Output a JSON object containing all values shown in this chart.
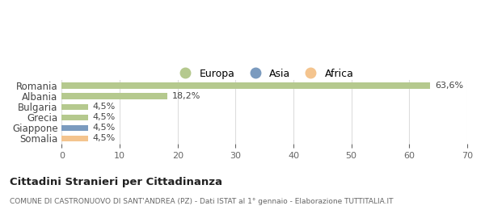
{
  "categories": [
    "Romania",
    "Albania",
    "Bulgaria",
    "Grecia",
    "Giappone",
    "Somalia"
  ],
  "values": [
    63.6,
    18.2,
    4.5,
    4.5,
    4.5,
    4.5
  ],
  "labels": [
    "63,6%",
    "18,2%",
    "4,5%",
    "4,5%",
    "4,5%",
    "4,5%"
  ],
  "colors": [
    "#b5c98e",
    "#b5c98e",
    "#b5c98e",
    "#b5c98e",
    "#7b9bbf",
    "#f4c48e"
  ],
  "legend_items": [
    {
      "label": "Europa",
      "color": "#b5c98e"
    },
    {
      "label": "Asia",
      "color": "#7b9bbf"
    },
    {
      "label": "Africa",
      "color": "#f4c48e"
    }
  ],
  "xlim": [
    0,
    70
  ],
  "xticks": [
    0,
    10,
    20,
    30,
    40,
    50,
    60,
    70
  ],
  "title": "Cittadini Stranieri per Cittadinanza",
  "subtitle": "COMUNE DI CASTRONUOVO DI SANT'ANDREA (PZ) - Dati ISTAT al 1° gennaio - Elaborazione TUTTITALIA.IT",
  "background_color": "#ffffff",
  "grid_color": "#dddddd"
}
